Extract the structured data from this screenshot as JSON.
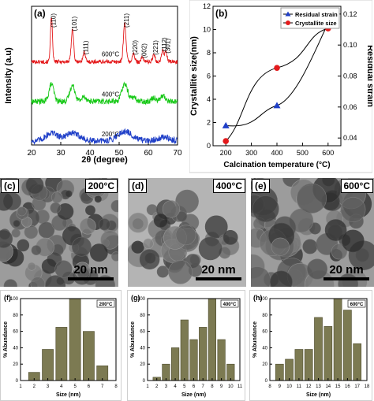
{
  "chart_data": [
    {
      "id": "a",
      "type": "line",
      "panel_label": "(a)",
      "xlabel": "2θ (degree)",
      "ylabel": "Intensity (a.u)",
      "xlim": [
        20,
        70
      ],
      "xticks": [
        "20",
        "30",
        "40",
        "50",
        "60",
        "70"
      ],
      "series": [
        {
          "name": "600°C",
          "color": "#e41a1c",
          "offset": 105,
          "noise": 2.5,
          "peaks": [
            [
              26.8,
              55,
              0.35
            ],
            [
              34.0,
              42,
              0.4
            ],
            [
              38.0,
              12,
              0.4
            ],
            [
              51.9,
              48,
              0.45
            ],
            [
              54.9,
              10,
              0.4
            ],
            [
              58.0,
              6,
              0.4
            ],
            [
              61.9,
              10,
              0.4
            ],
            [
              64.9,
              14,
              0.4
            ],
            [
              66.0,
              12,
              0.4
            ]
          ]
        },
        {
          "name": "400°C",
          "color": "#16c816",
          "offset": 55,
          "noise": 3.5,
          "peaks": [
            [
              26.8,
              22,
              0.8
            ],
            [
              34.0,
              20,
              0.9
            ],
            [
              38.0,
              6,
              0.8
            ],
            [
              51.9,
              22,
              1.0
            ],
            [
              54.9,
              5,
              0.8
            ],
            [
              61.9,
              5,
              0.8
            ],
            [
              65.0,
              7,
              0.8
            ]
          ]
        },
        {
          "name": "200°C",
          "color": "#1f3fc8",
          "offset": 5,
          "noise": 4,
          "peaks": [
            [
              26.8,
              10,
              2.0
            ],
            [
              34.0,
              10,
              2.5
            ],
            [
              51.9,
              12,
              2.5
            ],
            [
              65.0,
              5,
              2.0
            ]
          ]
        }
      ],
      "peak_labels": [
        {
          "text": "(110)",
          "x": 26.8
        },
        {
          "text": "(101)",
          "x": 34.0
        },
        {
          "text": "(111)",
          "x": 38.0
        },
        {
          "text": "(211)",
          "x": 51.9
        },
        {
          "text": "(220)",
          "x": 54.9
        },
        {
          "text": "(002)",
          "x": 58.0
        },
        {
          "text": "(221)",
          "x": 61.9
        },
        {
          "text": "(112)",
          "x": 64.9
        },
        {
          "text": "(301)",
          "x": 66.0
        }
      ]
    },
    {
      "id": "b",
      "type": "line",
      "panel_label": "(b)",
      "xlabel": "Calcination temperature (°C)",
      "ylabel": "Crystallite size(nm)",
      "y2label": "Residual strain",
      "x": [
        200,
        400,
        600
      ],
      "xlim": [
        150,
        650
      ],
      "xticks": [
        "200",
        "300",
        "400",
        "500",
        "600"
      ],
      "ylim": [
        0,
        12
      ],
      "yticks": [
        "0",
        "2",
        "4",
        "6",
        "8",
        "10",
        "12"
      ],
      "y2lim": [
        0.035,
        0.125
      ],
      "y2ticks": [
        "0.04",
        "0.06",
        "0.08",
        "0.10",
        "0.12"
      ],
      "legend_position": "top-right",
      "series": [
        {
          "name": "Residual strain",
          "axis": "y2",
          "color": "#1f3fc8",
          "marker": "triangle",
          "values": [
            0.048,
            0.061,
            0.114
          ]
        },
        {
          "name": "Crystallite size",
          "axis": "y",
          "color": "#e41a1c",
          "marker": "circle",
          "values": [
            0.4,
            6.7,
            10.1
          ]
        }
      ]
    },
    {
      "id": "f",
      "type": "bar",
      "panel_label": "(f)",
      "temperature": "200°C",
      "xlabel": "Size (nm)",
      "ylabel": "% Abundance",
      "categories": [
        2,
        3,
        4,
        5,
        6,
        7
      ],
      "values": [
        10,
        38,
        65,
        100,
        60,
        18
      ],
      "xlim": [
        1,
        8
      ],
      "xticks": [
        "1",
        "2",
        "3",
        "4",
        "5",
        "6",
        "7",
        "8"
      ],
      "ylim": [
        0,
        100
      ],
      "yticks": [
        "0",
        "20",
        "40",
        "60",
        "80",
        "100"
      ]
    },
    {
      "id": "g",
      "type": "bar",
      "panel_label": "(g)",
      "temperature": "400°C",
      "xlabel": "Size (nm)",
      "ylabel": "% Abundance",
      "categories": [
        2,
        3,
        4,
        5,
        6,
        7,
        8,
        9,
        10
      ],
      "values": [
        4,
        20,
        40,
        74,
        50,
        65,
        100,
        50,
        20
      ],
      "xlim": [
        1,
        11
      ],
      "xticks": [
        "1",
        "2",
        "3",
        "4",
        "5",
        "6",
        "7",
        "8",
        "9",
        "10",
        "11"
      ],
      "ylim": [
        0,
        100
      ],
      "yticks": [
        "0",
        "20",
        "40",
        "60",
        "80",
        "100"
      ]
    },
    {
      "id": "h",
      "type": "bar",
      "panel_label": "(h)",
      "temperature": "600°C",
      "xlabel": "Size (nm)",
      "ylabel": "% Abundance",
      "categories": [
        9,
        10,
        11,
        12,
        13,
        14,
        15,
        16,
        17
      ],
      "values": [
        20,
        26,
        38,
        38,
        77,
        66,
        100,
        86,
        45
      ],
      "xlim": [
        8,
        18
      ],
      "xticks": [
        "8",
        "9",
        "10",
        "11",
        "12",
        "13",
        "14",
        "15",
        "16",
        "17",
        "18"
      ],
      "ylim": [
        0,
        100
      ],
      "yticks": [
        "0",
        "20",
        "40",
        "60",
        "80",
        "100"
      ]
    }
  ],
  "tem_images": [
    {
      "panel_label": "(c)",
      "temperature": "200°C",
      "scale": "20 nm",
      "seed": 11,
      "count": 90,
      "rmin": 4,
      "rmax": 13
    },
    {
      "panel_label": "(d)",
      "temperature": "400°C",
      "scale": "20 nm",
      "seed": 23,
      "count": 55,
      "rmin": 6,
      "rmax": 16
    },
    {
      "panel_label": "(e)",
      "temperature": "600°C",
      "scale": "20 nm",
      "seed": 37,
      "count": 65,
      "rmin": 7,
      "rmax": 19
    }
  ]
}
